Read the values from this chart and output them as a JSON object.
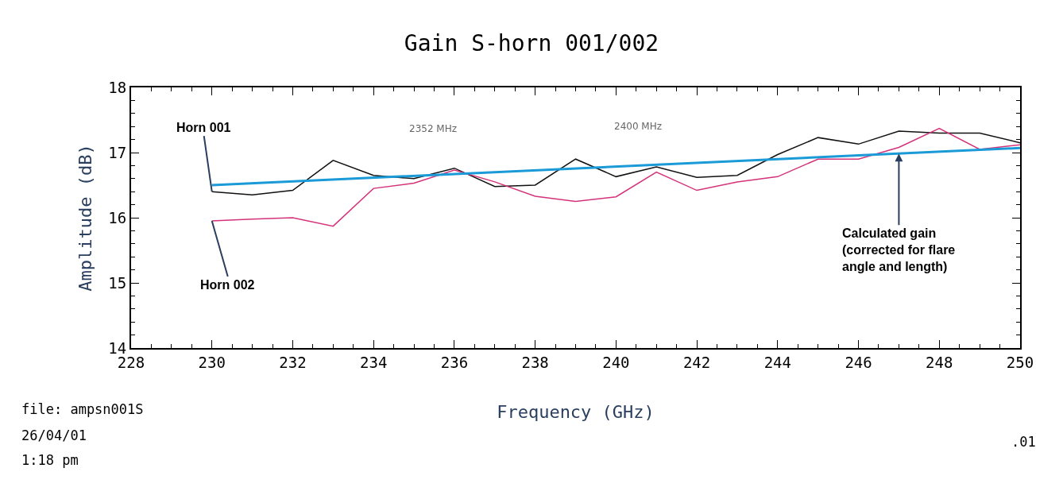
{
  "chart_data": {
    "type": "line",
    "title": "Gain S-horn 001/002",
    "xlabel": "Frequency (GHz)",
    "ylabel": "Amplitude (dB)",
    "x": [
      230,
      231,
      232,
      233,
      234,
      235,
      236,
      237,
      238,
      239,
      240,
      241,
      242,
      243,
      244,
      245,
      246,
      247,
      248,
      249,
      250
    ],
    "series": [
      {
        "name": "Horn 001",
        "color": "#111111",
        "values": [
          16.4,
          16.35,
          16.42,
          16.88,
          16.65,
          16.6,
          16.76,
          16.48,
          16.5,
          16.9,
          16.63,
          16.78,
          16.62,
          16.65,
          16.97,
          17.23,
          17.13,
          17.33,
          17.3,
          17.3,
          17.15
        ]
      },
      {
        "name": "Horn 002",
        "color": "#d4327a",
        "values": [
          15.95,
          15.98,
          16.0,
          15.87,
          16.45,
          16.53,
          16.73,
          16.55,
          16.33,
          16.25,
          16.32,
          16.7,
          16.42,
          16.55,
          16.63,
          16.9,
          16.9,
          17.08,
          17.37,
          17.05,
          17.12
        ]
      },
      {
        "name": "Calculated gain (corrected for flare angle and length)",
        "color": "#1a9ad6",
        "x": [
          230,
          250
        ],
        "values": [
          16.5,
          17.07
        ]
      }
    ],
    "annotations": [
      "2352 MHz",
      "2400 MHz",
      "file: ampsn001S",
      "26/04/01",
      "1:18 pm",
      ".01"
    ],
    "xlim": [
      228,
      250
    ],
    "xticks": [
      228,
      230,
      232,
      234,
      236,
      238,
      240,
      242,
      244,
      246,
      248,
      250
    ],
    "ylim": [
      14,
      18
    ],
    "yticks": [
      14,
      15,
      16,
      17,
      18
    ],
    "legend": false,
    "marker": "none",
    "line_style": "solid"
  }
}
